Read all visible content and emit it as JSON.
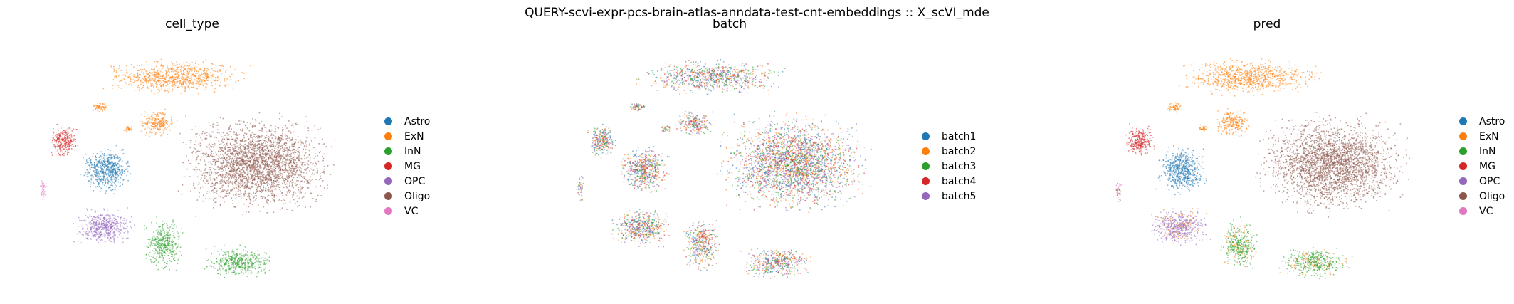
{
  "suptitle": "QUERY-scvi-expr-pcs-brain-atlas-anndata-test-cnt-embeddings :: X_scVI_mde",
  "colors": {
    "Astro": "#1f77b4",
    "ExN": "#ff7f0e",
    "InN": "#2ca02c",
    "MG": "#d62728",
    "OPC": "#9467bd",
    "Oligo": "#8c564b",
    "VC": "#e377c2",
    "batch1": "#1f77b4",
    "batch2": "#ff7f0e",
    "batch3": "#2ca02c",
    "batch4": "#d62728",
    "batch5": "#9467bd"
  },
  "chart_data": [
    {
      "type": "scatter",
      "title": "cell_type",
      "xlabel": "",
      "ylabel": "",
      "axes": "off",
      "legend_placement": "right",
      "legend": [
        "Astro",
        "ExN",
        "InN",
        "MG",
        "OPC",
        "Oligo",
        "VC"
      ]
    },
    {
      "type": "scatter",
      "title": "batch",
      "xlabel": "",
      "ylabel": "",
      "axes": "off",
      "legend_placement": "right",
      "legend": [
        "batch1",
        "batch2",
        "batch3",
        "batch4",
        "batch5"
      ]
    },
    {
      "type": "scatter",
      "title": "pred",
      "xlabel": "",
      "ylabel": "",
      "axes": "off",
      "legend_placement": "right",
      "legend": [
        "Astro",
        "ExN",
        "InN",
        "MG",
        "OPC",
        "Oligo",
        "VC"
      ]
    }
  ]
}
